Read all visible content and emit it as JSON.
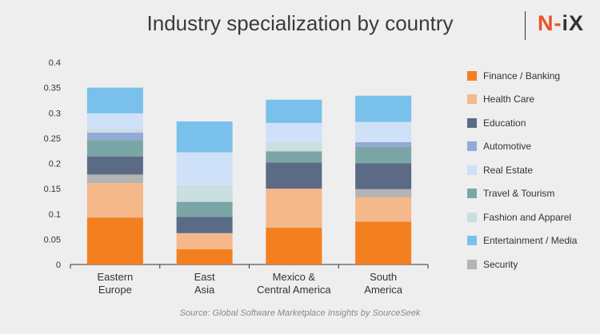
{
  "header": {
    "title": "Industry specialization by country",
    "logo_prefix": "N-",
    "logo_suffix": "iX"
  },
  "footer": {
    "source": "Source: Global Software Marketplace Insights by SourceSeek"
  },
  "colors": {
    "Finance / Banking": "#f47f20",
    "Health Care": "#f5b88a",
    "Security": "#b4b4b4",
    "Education": "#5b6b86",
    "Travel & Tourism": "#7aa7a6",
    "Automotive": "#93a9d6",
    "Fashion and Apparel": "#c9dfe0",
    "Real Estate": "#cfe1f8",
    "Entertainment / Media": "#79c1ea"
  },
  "legend": [
    "Finance / Banking",
    "Health Care",
    "Education",
    "Automotive",
    "Real Estate",
    "Travel & Tourism",
    "Fashion and Apparel",
    "Entertainment / Media",
    "Security"
  ],
  "chart_data": {
    "type": "bar",
    "stacked": true,
    "title": "Industry specialization by country",
    "categories": [
      [
        "Eastern",
        "Europe"
      ],
      [
        "East",
        "Asia"
      ],
      [
        "Mexico &",
        "Central America"
      ],
      [
        "South",
        "America"
      ]
    ],
    "ylim": [
      0,
      0.4
    ],
    "yticks": [
      "0",
      "0.05",
      "0.1",
      "0.15",
      "0.2",
      "0.25",
      "0.3",
      "0.35",
      "0.4"
    ],
    "series": [
      {
        "name": "Finance / Banking",
        "values": [
          0.093,
          0.03,
          0.073,
          0.085
        ]
      },
      {
        "name": "Health Care",
        "values": [
          0.068,
          0.032,
          0.077,
          0.048
        ]
      },
      {
        "name": "Security",
        "values": [
          0.017,
          0.0,
          0.0,
          0.016
        ]
      },
      {
        "name": "Education",
        "values": [
          0.036,
          0.032,
          0.052,
          0.051
        ]
      },
      {
        "name": "Travel & Tourism",
        "values": [
          0.032,
          0.03,
          0.022,
          0.033
        ]
      },
      {
        "name": "Automotive",
        "values": [
          0.015,
          0.0,
          0.0,
          0.009
        ]
      },
      {
        "name": "Fashion and Apparel",
        "values": [
          0.007,
          0.033,
          0.019,
          0.0
        ]
      },
      {
        "name": "Real Estate",
        "values": [
          0.031,
          0.065,
          0.037,
          0.04
        ]
      },
      {
        "name": "Entertainment / Media",
        "values": [
          0.051,
          0.061,
          0.046,
          0.052
        ]
      }
    ]
  }
}
